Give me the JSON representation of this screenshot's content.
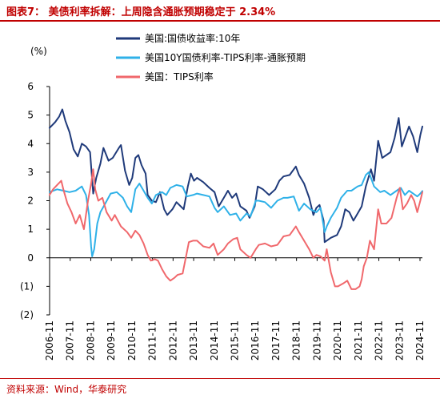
{
  "header": {
    "title": "图表7：  美债利率拆解：上周隐含通胀预期稳定于 2.34%"
  },
  "footer": {
    "source": "资料来源：Wind，华泰研究"
  },
  "chart_data": {
    "type": "line",
    "ylabel": "(%)",
    "ylim": [
      -2,
      6
    ],
    "yticks": [
      6,
      5,
      4,
      3,
      2,
      1,
      0,
      -1,
      -2
    ],
    "ytick_labels": [
      "6",
      "5",
      "4",
      "3",
      "2",
      "1",
      "0",
      "(1)",
      "(2)"
    ],
    "xlim": [
      2006.833,
      2024.95
    ],
    "xticks": [
      2006.833,
      2007.833,
      2008.833,
      2009.833,
      2010.833,
      2011.833,
      2012.833,
      2013.833,
      2014.833,
      2015.833,
      2016.833,
      2017.833,
      2018.833,
      2019.833,
      2020.833,
      2021.833,
      2022.833,
      2023.833,
      2024.833
    ],
    "xtick_labels": [
      "2006-11",
      "2007-11",
      "2008-11",
      "2009-11",
      "2010-11",
      "2011-11",
      "2012-11",
      "2013-11",
      "2014-11",
      "2015-11",
      "2016-11",
      "2017-11",
      "2018-11",
      "2019-11",
      "2020-11",
      "2021-11",
      "2022-11",
      "2023-11",
      "2024-11"
    ],
    "legend_position": "top",
    "grid": false,
    "series": [
      {
        "name": "美国:国债收益率:10年",
        "color": "#1f3a7a",
        "points": [
          [
            2006.83,
            4.55
          ],
          [
            2007.1,
            4.75
          ],
          [
            2007.3,
            4.95
          ],
          [
            2007.45,
            5.2
          ],
          [
            2007.6,
            4.8
          ],
          [
            2007.8,
            4.4
          ],
          [
            2008.0,
            3.8
          ],
          [
            2008.2,
            3.55
          ],
          [
            2008.4,
            4.0
          ],
          [
            2008.6,
            3.9
          ],
          [
            2008.8,
            3.7
          ],
          [
            2008.95,
            2.25
          ],
          [
            2009.1,
            2.8
          ],
          [
            2009.3,
            3.3
          ],
          [
            2009.45,
            3.85
          ],
          [
            2009.7,
            3.4
          ],
          [
            2009.9,
            3.5
          ],
          [
            2010.2,
            3.85
          ],
          [
            2010.3,
            3.95
          ],
          [
            2010.5,
            3.05
          ],
          [
            2010.7,
            2.55
          ],
          [
            2010.85,
            2.8
          ],
          [
            2011.0,
            3.5
          ],
          [
            2011.15,
            3.6
          ],
          [
            2011.3,
            3.25
          ],
          [
            2011.5,
            2.95
          ],
          [
            2011.6,
            2.2
          ],
          [
            2011.8,
            2.0
          ],
          [
            2012.0,
            1.95
          ],
          [
            2012.2,
            2.3
          ],
          [
            2012.4,
            1.7
          ],
          [
            2012.55,
            1.5
          ],
          [
            2012.8,
            1.7
          ],
          [
            2013.0,
            1.95
          ],
          [
            2013.35,
            1.7
          ],
          [
            2013.55,
            2.5
          ],
          [
            2013.7,
            2.95
          ],
          [
            2013.85,
            2.7
          ],
          [
            2014.0,
            2.8
          ],
          [
            2014.3,
            2.65
          ],
          [
            2014.6,
            2.45
          ],
          [
            2014.85,
            2.3
          ],
          [
            2015.05,
            1.8
          ],
          [
            2015.3,
            2.1
          ],
          [
            2015.5,
            2.35
          ],
          [
            2015.7,
            2.1
          ],
          [
            2015.9,
            2.25
          ],
          [
            2016.1,
            1.8
          ],
          [
            2016.4,
            1.65
          ],
          [
            2016.55,
            1.4
          ],
          [
            2016.8,
            1.8
          ],
          [
            2016.95,
            2.5
          ],
          [
            2017.2,
            2.4
          ],
          [
            2017.5,
            2.2
          ],
          [
            2017.8,
            2.4
          ],
          [
            2018.0,
            2.7
          ],
          [
            2018.2,
            2.85
          ],
          [
            2018.5,
            2.9
          ],
          [
            2018.8,
            3.2
          ],
          [
            2018.95,
            2.9
          ],
          [
            2019.2,
            2.6
          ],
          [
            2019.45,
            2.1
          ],
          [
            2019.65,
            1.5
          ],
          [
            2019.8,
            1.75
          ],
          [
            2019.95,
            1.85
          ],
          [
            2020.15,
            1.3
          ],
          [
            2020.2,
            0.55
          ],
          [
            2020.5,
            0.7
          ],
          [
            2020.8,
            0.8
          ],
          [
            2021.0,
            1.1
          ],
          [
            2021.2,
            1.7
          ],
          [
            2021.4,
            1.6
          ],
          [
            2021.6,
            1.3
          ],
          [
            2021.8,
            1.55
          ],
          [
            2022.0,
            1.8
          ],
          [
            2022.2,
            2.5
          ],
          [
            2022.45,
            3.1
          ],
          [
            2022.6,
            2.7
          ],
          [
            2022.8,
            4.1
          ],
          [
            2023.0,
            3.5
          ],
          [
            2023.2,
            3.6
          ],
          [
            2023.4,
            3.7
          ],
          [
            2023.6,
            4.2
          ],
          [
            2023.8,
            4.9
          ],
          [
            2023.95,
            3.9
          ],
          [
            2024.15,
            4.3
          ],
          [
            2024.3,
            4.6
          ],
          [
            2024.5,
            4.25
          ],
          [
            2024.7,
            3.7
          ],
          [
            2024.85,
            4.3
          ],
          [
            2024.95,
            4.6
          ]
        ]
      },
      {
        "name": "美国10Y国债利率-TIPS利率-通胀预期",
        "color": "#2fb1e8",
        "points": [
          [
            2006.83,
            2.3
          ],
          [
            2007.2,
            2.4
          ],
          [
            2007.5,
            2.35
          ],
          [
            2007.8,
            2.3
          ],
          [
            2008.1,
            2.35
          ],
          [
            2008.4,
            2.5
          ],
          [
            2008.6,
            2.2
          ],
          [
            2008.75,
            1.5
          ],
          [
            2008.85,
            0.4
          ],
          [
            2008.9,
            0.05
          ],
          [
            2009.0,
            0.3
          ],
          [
            2009.15,
            1.2
          ],
          [
            2009.3,
            1.6
          ],
          [
            2009.5,
            1.85
          ],
          [
            2009.8,
            2.25
          ],
          [
            2010.1,
            2.3
          ],
          [
            2010.4,
            2.1
          ],
          [
            2010.6,
            1.8
          ],
          [
            2010.8,
            1.6
          ],
          [
            2011.0,
            2.4
          ],
          [
            2011.2,
            2.6
          ],
          [
            2011.4,
            2.35
          ],
          [
            2011.6,
            2.1
          ],
          [
            2011.8,
            1.9
          ],
          [
            2012.0,
            2.2
          ],
          [
            2012.3,
            2.3
          ],
          [
            2012.5,
            2.2
          ],
          [
            2012.7,
            2.45
          ],
          [
            2013.0,
            2.55
          ],
          [
            2013.3,
            2.5
          ],
          [
            2013.5,
            2.15
          ],
          [
            2013.8,
            2.2
          ],
          [
            2014.0,
            2.25
          ],
          [
            2014.3,
            2.2
          ],
          [
            2014.6,
            2.15
          ],
          [
            2014.85,
            1.75
          ],
          [
            2015.0,
            1.6
          ],
          [
            2015.3,
            1.8
          ],
          [
            2015.6,
            1.5
          ],
          [
            2015.9,
            1.55
          ],
          [
            2016.1,
            1.3
          ],
          [
            2016.4,
            1.55
          ],
          [
            2016.6,
            1.45
          ],
          [
            2016.85,
            2.0
          ],
          [
            2017.0,
            2.0
          ],
          [
            2017.3,
            1.95
          ],
          [
            2017.6,
            1.75
          ],
          [
            2017.9,
            2.0
          ],
          [
            2018.2,
            2.1
          ],
          [
            2018.4,
            2.1
          ],
          [
            2018.7,
            2.15
          ],
          [
            2018.95,
            1.65
          ],
          [
            2019.2,
            1.9
          ],
          [
            2019.5,
            1.7
          ],
          [
            2019.8,
            1.6
          ],
          [
            2020.0,
            1.75
          ],
          [
            2020.2,
            0.9
          ],
          [
            2020.3,
            1.1
          ],
          [
            2020.5,
            1.4
          ],
          [
            2020.8,
            1.75
          ],
          [
            2021.0,
            2.1
          ],
          [
            2021.3,
            2.35
          ],
          [
            2021.5,
            2.35
          ],
          [
            2021.8,
            2.5
          ],
          [
            2022.0,
            2.55
          ],
          [
            2022.2,
            2.9
          ],
          [
            2022.35,
            3.0
          ],
          [
            2022.6,
            2.5
          ],
          [
            2022.9,
            2.3
          ],
          [
            2023.1,
            2.35
          ],
          [
            2023.4,
            2.2
          ],
          [
            2023.7,
            2.35
          ],
          [
            2023.9,
            2.45
          ],
          [
            2024.1,
            2.2
          ],
          [
            2024.3,
            2.35
          ],
          [
            2024.5,
            2.25
          ],
          [
            2024.7,
            2.15
          ],
          [
            2024.85,
            2.25
          ],
          [
            2024.95,
            2.34
          ]
        ]
      },
      {
        "name": "美国：TIPS利率",
        "color": "#f0686c",
        "points": [
          [
            2006.83,
            2.2
          ],
          [
            2007.0,
            2.4
          ],
          [
            2007.2,
            2.55
          ],
          [
            2007.4,
            2.7
          ],
          [
            2007.5,
            2.4
          ],
          [
            2007.7,
            1.9
          ],
          [
            2007.9,
            1.6
          ],
          [
            2008.1,
            1.2
          ],
          [
            2008.3,
            1.5
          ],
          [
            2008.5,
            1.0
          ],
          [
            2008.7,
            2.0
          ],
          [
            2008.85,
            2.6
          ],
          [
            2008.95,
            3.1
          ],
          [
            2009.05,
            2.4
          ],
          [
            2009.2,
            2.0
          ],
          [
            2009.4,
            2.1
          ],
          [
            2009.6,
            1.6
          ],
          [
            2009.85,
            1.3
          ],
          [
            2010.0,
            1.5
          ],
          [
            2010.3,
            1.1
          ],
          [
            2010.6,
            0.9
          ],
          [
            2010.8,
            0.7
          ],
          [
            2011.0,
            0.95
          ],
          [
            2011.2,
            0.8
          ],
          [
            2011.4,
            0.5
          ],
          [
            2011.6,
            0.1
          ],
          [
            2011.75,
            -0.1
          ],
          [
            2011.95,
            -0.05
          ],
          [
            2012.1,
            -0.1
          ],
          [
            2012.3,
            -0.4
          ],
          [
            2012.5,
            -0.65
          ],
          [
            2012.7,
            -0.8
          ],
          [
            2012.9,
            -0.7
          ],
          [
            2013.05,
            -0.6
          ],
          [
            2013.3,
            -0.55
          ],
          [
            2013.45,
            0.0
          ],
          [
            2013.6,
            0.55
          ],
          [
            2013.8,
            0.6
          ],
          [
            2014.0,
            0.6
          ],
          [
            2014.3,
            0.4
          ],
          [
            2014.6,
            0.35
          ],
          [
            2014.8,
            0.5
          ],
          [
            2015.0,
            0.1
          ],
          [
            2015.3,
            0.3
          ],
          [
            2015.5,
            0.5
          ],
          [
            2015.75,
            0.65
          ],
          [
            2015.95,
            0.7
          ],
          [
            2016.1,
            0.3
          ],
          [
            2016.4,
            0.1
          ],
          [
            2016.6,
            0.0
          ],
          [
            2016.85,
            0.3
          ],
          [
            2017.0,
            0.45
          ],
          [
            2017.3,
            0.5
          ],
          [
            2017.6,
            0.4
          ],
          [
            2017.9,
            0.45
          ],
          [
            2018.2,
            0.75
          ],
          [
            2018.5,
            0.8
          ],
          [
            2018.8,
            1.1
          ],
          [
            2018.95,
            0.9
          ],
          [
            2019.2,
            0.6
          ],
          [
            2019.45,
            0.3
          ],
          [
            2019.65,
            0.0
          ],
          [
            2019.8,
            0.1
          ],
          [
            2020.0,
            0.05
          ],
          [
            2020.2,
            -0.1
          ],
          [
            2020.3,
            0.3
          ],
          [
            2020.5,
            -0.5
          ],
          [
            2020.7,
            -1.0
          ],
          [
            2020.85,
            -1.0
          ],
          [
            2021.1,
            -0.9
          ],
          [
            2021.3,
            -0.8
          ],
          [
            2021.5,
            -1.1
          ],
          [
            2021.7,
            -1.1
          ],
          [
            2021.9,
            -1.0
          ],
          [
            2022.0,
            -0.75
          ],
          [
            2022.1,
            -0.3
          ],
          [
            2022.25,
            0.0
          ],
          [
            2022.4,
            0.6
          ],
          [
            2022.6,
            0.3
          ],
          [
            2022.8,
            1.7
          ],
          [
            2022.95,
            1.2
          ],
          [
            2023.2,
            1.2
          ],
          [
            2023.45,
            1.4
          ],
          [
            2023.7,
            2.1
          ],
          [
            2023.85,
            2.45
          ],
          [
            2024.0,
            1.7
          ],
          [
            2024.2,
            1.9
          ],
          [
            2024.4,
            2.2
          ],
          [
            2024.55,
            2.0
          ],
          [
            2024.7,
            1.6
          ],
          [
            2024.85,
            2.0
          ],
          [
            2024.95,
            2.3
          ]
        ]
      }
    ]
  }
}
